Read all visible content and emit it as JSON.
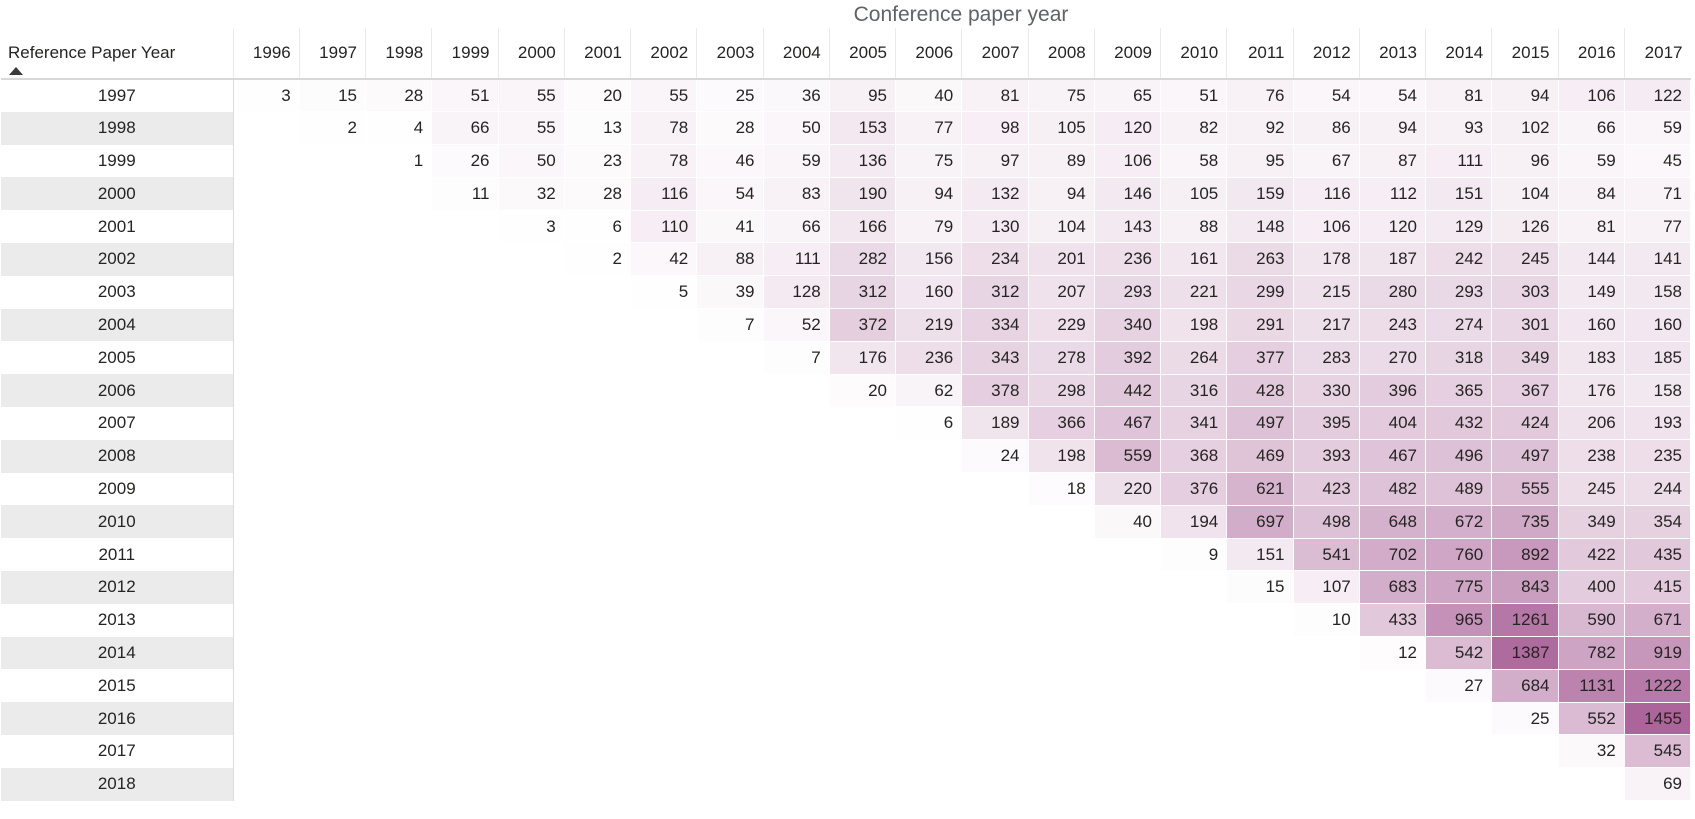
{
  "title": "Conference paper year",
  "row_header_label": "Reference Paper Year",
  "sort_indicator": "ascending",
  "colors": {
    "title_text": "#5f6368",
    "cell_text": "#252423",
    "row_band": "#ebebeb",
    "header_rule": "#d8d8d8",
    "heat_min": "#FFFFFF",
    "heat_max": "#AB659A"
  },
  "chart_data": {
    "type": "heatmap",
    "title": "Conference paper year",
    "xlabel": "Conference paper year",
    "ylabel": "Reference Paper Year",
    "legend_position": "none",
    "grid": "1px white gaps between cells",
    "heat": {
      "min_value": 0,
      "max_value": 1455,
      "min_color": "#FFFFFF",
      "max_color": "#AB659A",
      "exponent": 0.85
    },
    "columns": [
      "1996",
      "1997",
      "1998",
      "1999",
      "2000",
      "2001",
      "2002",
      "2003",
      "2004",
      "2005",
      "2006",
      "2007",
      "2008",
      "2009",
      "2010",
      "2011",
      "2012",
      "2013",
      "2014",
      "2015",
      "2016",
      "2017"
    ],
    "rows": [
      {
        "year": "1997",
        "first_col": "1996",
        "values": [
          3,
          15,
          28,
          51,
          55,
          20,
          55,
          25,
          36,
          95,
          40,
          81,
          75,
          65,
          51,
          76,
          54,
          54,
          81,
          94,
          106,
          122
        ]
      },
      {
        "year": "1998",
        "first_col": "1997",
        "values": [
          2,
          4,
          66,
          55,
          13,
          78,
          28,
          50,
          153,
          77,
          98,
          105,
          120,
          82,
          92,
          86,
          94,
          93,
          102,
          66,
          59
        ]
      },
      {
        "year": "1999",
        "first_col": "1998",
        "values": [
          1,
          26,
          50,
          23,
          78,
          46,
          59,
          136,
          75,
          97,
          89,
          106,
          58,
          95,
          67,
          87,
          111,
          96,
          59,
          45
        ]
      },
      {
        "year": "2000",
        "first_col": "1999",
        "values": [
          11,
          32,
          28,
          116,
          54,
          83,
          190,
          94,
          132,
          94,
          146,
          105,
          159,
          116,
          112,
          151,
          104,
          84,
          71
        ]
      },
      {
        "year": "2001",
        "first_col": "2000",
        "values": [
          3,
          6,
          110,
          41,
          66,
          166,
          79,
          130,
          104,
          143,
          88,
          148,
          106,
          120,
          129,
          126,
          81,
          77
        ]
      },
      {
        "year": "2002",
        "first_col": "2001",
        "values": [
          2,
          42,
          88,
          111,
          282,
          156,
          234,
          201,
          236,
          161,
          263,
          178,
          187,
          242,
          245,
          144,
          141
        ]
      },
      {
        "year": "2003",
        "first_col": "2002",
        "values": [
          5,
          39,
          128,
          312,
          160,
          312,
          207,
          293,
          221,
          299,
          215,
          280,
          293,
          303,
          149,
          158
        ]
      },
      {
        "year": "2004",
        "first_col": "2003",
        "values": [
          7,
          52,
          372,
          219,
          334,
          229,
          340,
          198,
          291,
          217,
          243,
          274,
          301,
          160,
          160
        ]
      },
      {
        "year": "2005",
        "first_col": "2004",
        "values": [
          7,
          176,
          236,
          343,
          278,
          392,
          264,
          377,
          283,
          270,
          318,
          349,
          183,
          185
        ]
      },
      {
        "year": "2006",
        "first_col": "2005",
        "values": [
          20,
          62,
          378,
          298,
          442,
          316,
          428,
          330,
          396,
          365,
          367,
          176,
          158
        ]
      },
      {
        "year": "2007",
        "first_col": "2006",
        "values": [
          6,
          189,
          366,
          467,
          341,
          497,
          395,
          404,
          432,
          424,
          206,
          193
        ]
      },
      {
        "year": "2008",
        "first_col": "2007",
        "values": [
          24,
          198,
          559,
          368,
          469,
          393,
          467,
          496,
          497,
          238,
          235
        ]
      },
      {
        "year": "2009",
        "first_col": "2008",
        "values": [
          18,
          220,
          376,
          621,
          423,
          482,
          489,
          555,
          245,
          244
        ]
      },
      {
        "year": "2010",
        "first_col": "2009",
        "values": [
          40,
          194,
          697,
          498,
          648,
          672,
          735,
          349,
          354
        ]
      },
      {
        "year": "2011",
        "first_col": "2010",
        "values": [
          9,
          151,
          541,
          702,
          760,
          892,
          422,
          435
        ]
      },
      {
        "year": "2012",
        "first_col": "2011",
        "values": [
          15,
          107,
          683,
          775,
          843,
          400,
          415
        ]
      },
      {
        "year": "2013",
        "first_col": "2012",
        "values": [
          10,
          433,
          965,
          1261,
          590,
          671
        ]
      },
      {
        "year": "2014",
        "first_col": "2013",
        "values": [
          12,
          542,
          1387,
          782,
          919
        ]
      },
      {
        "year": "2015",
        "first_col": "2014",
        "values": [
          27,
          684,
          1131,
          1222
        ]
      },
      {
        "year": "2016",
        "first_col": "2015",
        "values": [
          25,
          552,
          1455
        ]
      },
      {
        "year": "2017",
        "first_col": "2016",
        "values": [
          32,
          545
        ]
      },
      {
        "year": "2018",
        "first_col": "2017",
        "values": [
          69
        ]
      }
    ]
  }
}
